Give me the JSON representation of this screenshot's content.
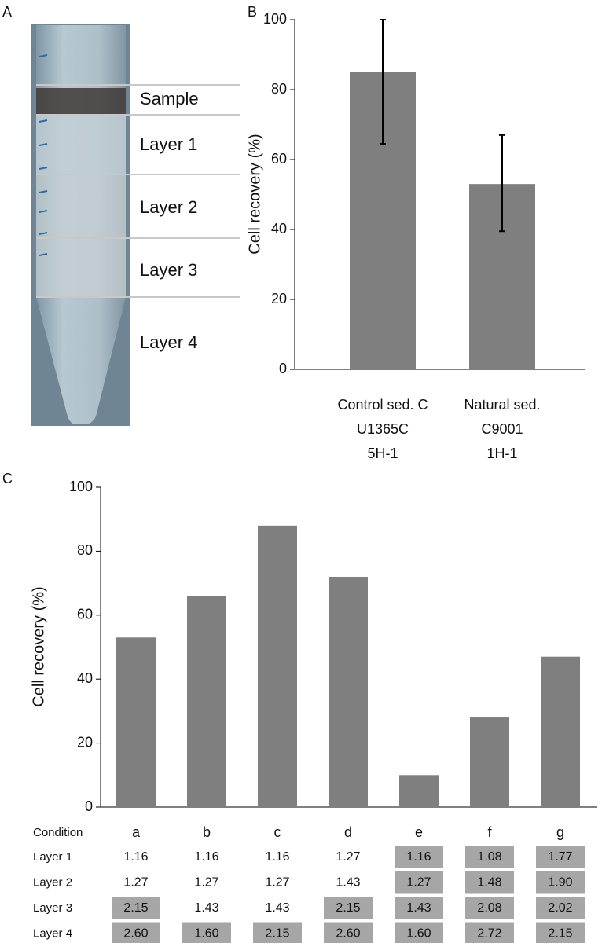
{
  "panel_labels": [
    "A",
    "B",
    "C"
  ],
  "photo": {
    "labels": [
      "Sample",
      "Layer 1",
      "Layer 2",
      "Layer 3",
      "Layer 4"
    ]
  },
  "chart_data": [
    {
      "type": "bar",
      "y_label": "Cell recovery (%)",
      "categories": [
        [
          "Control sed. C",
          "U1365C",
          "5H-1"
        ],
        [
          "Natural sed.",
          "C9001",
          "1H-1"
        ]
      ],
      "values": [
        85,
        53
      ],
      "error_minus": [
        20.5,
        13.5
      ],
      "error_plus": [
        15,
        14
      ],
      "color": "#7f7f7f",
      "ylim": [
        0,
        100
      ],
      "yticks": [
        0,
        20,
        40,
        60,
        80,
        100
      ]
    },
    {
      "type": "bar",
      "y_label": "Cell recovery (%)",
      "categories": [
        "a",
        "b",
        "c",
        "d",
        "e",
        "f",
        "g"
      ],
      "values": [
        53,
        66,
        88,
        72,
        10,
        28,
        47
      ],
      "color": "#7f7f7f",
      "ylim": [
        0,
        100
      ],
      "yticks": [
        0,
        20,
        40,
        60,
        80,
        100
      ],
      "table": {
        "header": "Condition",
        "rows": [
          {
            "name": "Layer 1",
            "cells": [
              "1.16",
              "1.16",
              "1.16",
              "1.27",
              "1.16",
              "1.08",
              "1.77"
            ],
            "highlight": [
              false,
              false,
              false,
              false,
              true,
              true,
              true
            ]
          },
          {
            "name": "Layer 2",
            "cells": [
              "1.27",
              "1.27",
              "1.27",
              "1.43",
              "1.27",
              "1.48",
              "1.90"
            ],
            "highlight": [
              false,
              false,
              false,
              false,
              true,
              true,
              true
            ]
          },
          {
            "name": "Layer 3",
            "cells": [
              "2.15",
              "1.43",
              "1.43",
              "2.15",
              "1.43",
              "2.08",
              "2.02"
            ],
            "highlight": [
              true,
              false,
              false,
              true,
              true,
              true,
              true
            ]
          },
          {
            "name": "Layer 4",
            "cells": [
              "2.60",
              "1.60",
              "2.15",
              "2.60",
              "1.60",
              "2.72",
              "2.15"
            ],
            "highlight": [
              true,
              true,
              true,
              true,
              true,
              true,
              true
            ]
          }
        ]
      }
    }
  ]
}
